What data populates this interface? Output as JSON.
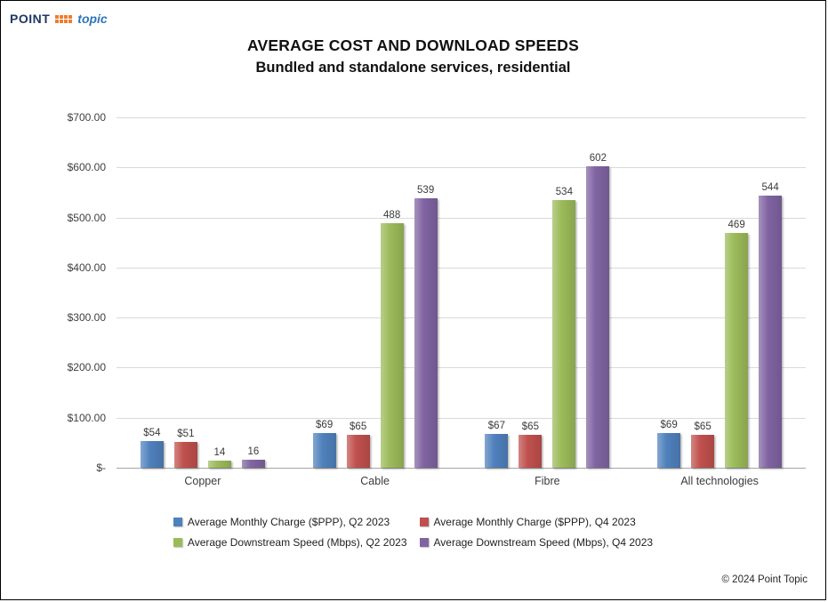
{
  "logo": {
    "point": "POINT",
    "topic": "topic"
  },
  "footer": {
    "copyright": "© 2024 Point Topic"
  },
  "chart_data": {
    "type": "bar",
    "title": "AVERAGE COST AND DOWNLOAD SPEEDS",
    "subtitle": "Bundled and standalone services, residential",
    "categories": [
      "Copper",
      "Cable",
      "Fibre",
      "All technologies"
    ],
    "series": [
      {
        "name": "Average Monthly Charge ($PPP), Q2 2023",
        "color": "#4F81BD",
        "values": [
          54,
          69,
          67,
          69
        ],
        "labels": [
          "$54",
          "$69",
          "$67",
          "$69"
        ]
      },
      {
        "name": "Average Monthly Charge ($PPP), Q4 2023",
        "color": "#C0504D",
        "values": [
          51,
          65,
          65,
          65
        ],
        "labels": [
          "$51",
          "$65",
          "$65",
          "$65"
        ]
      },
      {
        "name": "Average Downstream Speed (Mbps), Q2 2023",
        "color": "#9BBB59",
        "values": [
          14,
          488,
          534,
          469
        ],
        "labels": [
          "14",
          "488",
          "534",
          "469"
        ]
      },
      {
        "name": "Average Downstream Speed (Mbps), Q4 2023",
        "color": "#8064A2",
        "values": [
          16,
          539,
          602,
          544
        ],
        "labels": [
          "16",
          "539",
          "602",
          "544"
        ]
      }
    ],
    "ylim": [
      0,
      700
    ],
    "ytick_step": 100,
    "ytick_labels": [
      "$-",
      "$100.00",
      "$200.00",
      "$300.00",
      "$400.00",
      "$500.00",
      "$600.00",
      "$700.00"
    ],
    "grid": true,
    "legend_position": "bottom"
  }
}
